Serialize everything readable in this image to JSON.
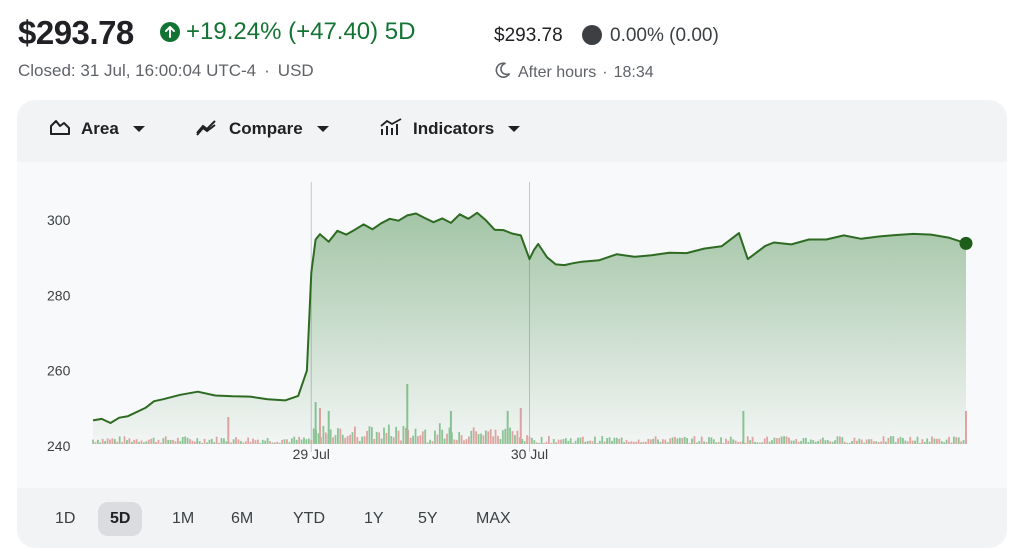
{
  "quote": {
    "price": "$293.78",
    "change": "+19.24% (+47.40) 5D",
    "closed_label": "Closed: 31 Jul, 16:00:04 UTC-4",
    "separator": "·",
    "currency": "USD"
  },
  "after_hours": {
    "price": "$293.78",
    "change": "0.00% (0.00)",
    "label": "After hours",
    "separator": "·",
    "time": "18:34"
  },
  "toolbar": {
    "area_label": "Area",
    "compare_label": "Compare",
    "indicators_label": "Indicators"
  },
  "ranges": [
    "1D",
    "5D",
    "1M",
    "6M",
    "YTD",
    "1Y",
    "5Y",
    "MAX"
  ],
  "active_range": "5D",
  "colors": {
    "up": "#137333",
    "line": "#2d6b22",
    "volume_up": "#8fc79a",
    "volume_down": "#e6a5a5",
    "divider": "#bdc7d6"
  },
  "chart_data": {
    "type": "area",
    "title": "",
    "xlabel": "",
    "ylabel": "",
    "ylim": [
      240,
      309
    ],
    "yticks": [
      240,
      260,
      280,
      300
    ],
    "x_ticks": [
      {
        "label": "29 Jul",
        "x": 0.25
      },
      {
        "label": "30 Jul",
        "x": 0.5
      }
    ],
    "session_dividers": [
      0.25,
      0.5
    ],
    "x": [
      0,
      0.01,
      0.02,
      0.03,
      0.04,
      0.06,
      0.07,
      0.08,
      0.1,
      0.12,
      0.14,
      0.16,
      0.18,
      0.2,
      0.22,
      0.235,
      0.245,
      0.25,
      0.255,
      0.26,
      0.27,
      0.28,
      0.29,
      0.3,
      0.31,
      0.32,
      0.33,
      0.34,
      0.35,
      0.36,
      0.37,
      0.38,
      0.39,
      0.4,
      0.41,
      0.42,
      0.43,
      0.44,
      0.45,
      0.46,
      0.47,
      0.48,
      0.49,
      0.5,
      0.505,
      0.51,
      0.52,
      0.53,
      0.54,
      0.55,
      0.56,
      0.58,
      0.6,
      0.62,
      0.64,
      0.66,
      0.68,
      0.7,
      0.72,
      0.74,
      0.75,
      0.77,
      0.78,
      0.8,
      0.82,
      0.84,
      0.86,
      0.88,
      0.9,
      0.92,
      0.94,
      0.96,
      0.98,
      1.0
    ],
    "values": [
      246.8,
      247.2,
      246.1,
      247.5,
      247.9,
      250.1,
      251.9,
      252.4,
      253.6,
      254.4,
      253.4,
      253.2,
      253.1,
      252.4,
      252.1,
      253.3,
      260.0,
      286.0,
      294.8,
      296.2,
      294.2,
      297.1,
      296.1,
      297.4,
      298.8,
      297.5,
      299.1,
      300.3,
      299.8,
      301.2,
      301.7,
      300.5,
      299.4,
      300.4,
      299.2,
      301.5,
      300.3,
      301.9,
      299.9,
      297.4,
      297.3,
      296.4,
      295.9,
      289.6,
      292.0,
      293.6,
      290.1,
      288.2,
      288.0,
      288.5,
      288.9,
      289.3,
      290.9,
      290.2,
      290.6,
      291.3,
      291.2,
      292.4,
      293.0,
      296.5,
      289.6,
      293.1,
      294.0,
      293.5,
      294.8,
      294.8,
      295.9,
      295.0,
      295.6,
      296.0,
      296.3,
      296.1,
      295.3,
      293.8
    ],
    "volume_note": "volume bars along baseline (green/red), no axis",
    "volume_peaks": [
      {
        "x": 0.155,
        "v": 0.45,
        "up": false
      },
      {
        "x": 0.255,
        "v": 0.7,
        "up": true
      },
      {
        "x": 0.26,
        "v": 0.6,
        "up": false
      },
      {
        "x": 0.27,
        "v": 0.55,
        "up": true
      },
      {
        "x": 0.36,
        "v": 1.0,
        "up": true
      },
      {
        "x": 0.41,
        "v": 0.55,
        "up": true
      },
      {
        "x": 0.475,
        "v": 0.55,
        "up": true
      },
      {
        "x": 0.49,
        "v": 0.6,
        "up": false
      },
      {
        "x": 0.745,
        "v": 0.55,
        "up": true
      },
      {
        "x": 1.0,
        "v": 0.55,
        "up": false
      }
    ],
    "last_value": 293.78,
    "end_marker": true,
    "grid": false
  }
}
